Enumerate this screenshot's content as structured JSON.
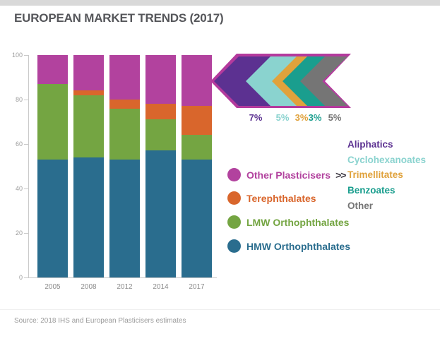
{
  "title": "EUROPEAN MARKET TRENDS (2017)",
  "source": "Source: 2018 IHS and European Plasticisers estimates",
  "chart_data": {
    "type": "bar",
    "stacked": true,
    "title": "EUROPEAN MARKET TRENDS (2017)",
    "categories": [
      "2005",
      "2008",
      "2012",
      "2014",
      "2017"
    ],
    "series": [
      {
        "name": "HMW Orthophthalates",
        "color": "#2a6d8e",
        "values": [
          53,
          54,
          53,
          57,
          53
        ]
      },
      {
        "name": "LMW Orthophthalates",
        "color": "#74a542",
        "values": [
          34,
          28,
          23,
          14,
          11
        ]
      },
      {
        "name": "Terephthalates",
        "color": "#d9662c",
        "values": [
          0,
          2,
          4,
          7,
          13
        ]
      },
      {
        "name": "Other Plasticisers",
        "color": "#b2429e",
        "values": [
          13,
          16,
          20,
          22,
          23
        ]
      }
    ],
    "xlabel": "",
    "ylabel": "",
    "ylim": [
      0,
      100
    ],
    "yticks": [
      0,
      20,
      40,
      60,
      80,
      100
    ],
    "grid": false,
    "legend_position": "right",
    "annotation": "2017 Other Plasticisers segment expands into arrow breakdown: Aliphatics 7%, Cyclohexanoates 5%, Trimellitates 3%, Benzoates 3%, Other 5%"
  },
  "legend": {
    "expand_symbol": ">>",
    "items": [
      {
        "label": "Other Plasticisers",
        "color": "#b2429e",
        "expand": true
      },
      {
        "label": "Terephthalates",
        "color": "#d9662c",
        "expand": false
      },
      {
        "label": "LMW Orthophthalates",
        "color": "#74a542",
        "expand": false
      },
      {
        "label": "HMW Orthophthalates",
        "color": "#2a6d8e",
        "expand": false
      }
    ]
  },
  "breakdown": {
    "arrow_outline_color": "#b43a9d",
    "items": [
      {
        "label": "Aliphatics",
        "pct": "7%",
        "color": "#5c3191"
      },
      {
        "label": "Cyclohexanoates",
        "pct": "5%",
        "color": "#8ad3cf"
      },
      {
        "label": "Trimellitates",
        "pct": "3%",
        "color": "#e0a23c"
      },
      {
        "label": "Benzoates",
        "pct": "3%",
        "color": "#1a9e8e"
      },
      {
        "label": "Other",
        "pct": "5%",
        "color": "#757575"
      }
    ]
  },
  "axis_colors": {
    "line": "#c9c9c9",
    "tick_label": "#9c9c9c",
    "category_label": "#8a8a8a"
  }
}
